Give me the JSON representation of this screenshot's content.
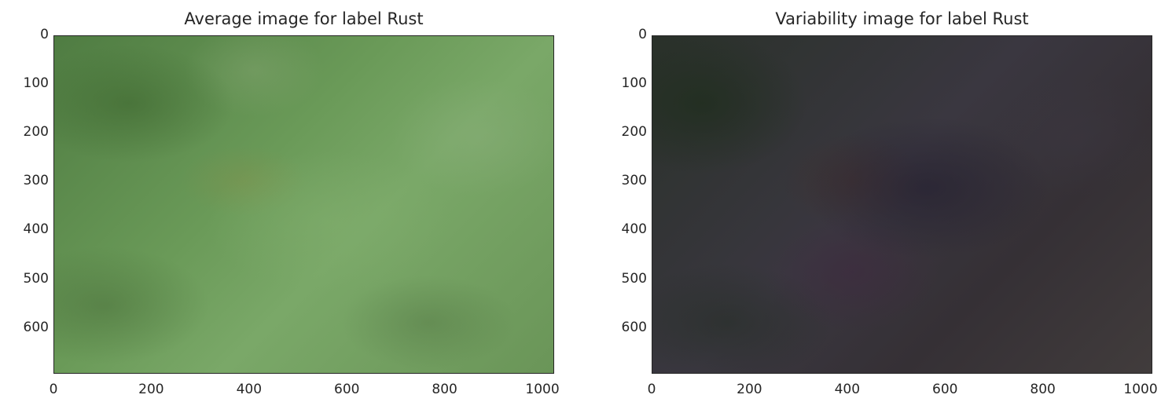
{
  "chart_data": [
    {
      "type": "heatmap",
      "title": "Average image for label Rust",
      "image_size": [
        1024,
        694
      ],
      "x_ticks": [
        "0",
        "200",
        "400",
        "600",
        "800",
        "1000"
      ],
      "y_ticks": [
        "0",
        "100",
        "200",
        "300",
        "400",
        "500",
        "600"
      ],
      "xlim": [
        0,
        1024
      ],
      "ylim": [
        694,
        0
      ],
      "grid": false,
      "colors": {
        "base": "#6a9a58",
        "dark": "#3f6a32",
        "light": "#8fb584"
      }
    },
    {
      "type": "heatmap",
      "title": "Variability image for label Rust",
      "image_size": [
        1024,
        694
      ],
      "x_ticks": [
        "0",
        "200",
        "400",
        "600",
        "800",
        "1000"
      ],
      "y_ticks": [
        "0",
        "100",
        "200",
        "300",
        "400",
        "500",
        "600"
      ],
      "xlim": [
        0,
        1024
      ],
      "ylim": [
        694,
        0
      ],
      "grid": false,
      "colors": {
        "base": "#383438",
        "dark": "#1f2a1f",
        "light": "#4a4350",
        "accent": "#3a2838"
      }
    }
  ]
}
